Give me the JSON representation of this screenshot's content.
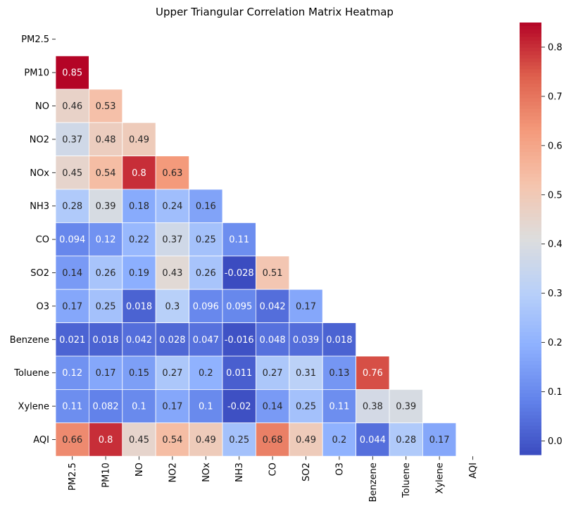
{
  "chart_data": {
    "type": "heatmap",
    "title": "Upper Triangular Correlation Matrix Heatmap",
    "xlabel": "",
    "ylabel": "",
    "rows": [
      "PM2.5",
      "PM10",
      "NO",
      "NO2",
      "NOx",
      "NH3",
      "CO",
      "SO2",
      "O3",
      "Benzene",
      "Toluene",
      "Xylene",
      "AQI"
    ],
    "columns": [
      "PM2.5",
      "PM10",
      "NO",
      "NO2",
      "NOx",
      "NH3",
      "CO",
      "SO2",
      "O3",
      "Benzene",
      "Toluene",
      "Xylene",
      "AQI"
    ],
    "values": [
      [],
      [
        "0.85"
      ],
      [
        "0.46",
        "0.53"
      ],
      [
        "0.37",
        "0.48",
        "0.49"
      ],
      [
        "0.45",
        "0.54",
        "0.8",
        "0.63"
      ],
      [
        "0.28",
        "0.39",
        "0.18",
        "0.24",
        "0.16"
      ],
      [
        "0.094",
        "0.12",
        "0.22",
        "0.37",
        "0.25",
        "0.11"
      ],
      [
        "0.14",
        "0.26",
        "0.19",
        "0.43",
        "0.26",
        "-0.028",
        "0.51"
      ],
      [
        "0.17",
        "0.25",
        "0.018",
        "0.3",
        "0.096",
        "0.095",
        "0.042",
        "0.17"
      ],
      [
        "0.021",
        "0.018",
        "0.042",
        "0.028",
        "0.047",
        "-0.016",
        "0.048",
        "0.039",
        "0.018"
      ],
      [
        "0.12",
        "0.17",
        "0.15",
        "0.27",
        "0.2",
        "0.011",
        "0.27",
        "0.31",
        "0.13",
        "0.76"
      ],
      [
        "0.11",
        "0.082",
        "0.1",
        "0.17",
        "0.1",
        "-0.02",
        "0.14",
        "0.25",
        "0.11",
        "0.38",
        "0.39"
      ],
      [
        "0.66",
        "0.8",
        "0.45",
        "0.54",
        "0.49",
        "0.25",
        "0.68",
        "0.49",
        "0.2",
        "0.044",
        "0.28",
        "0.17"
      ]
    ],
    "mask": "upper triangle including diagonal",
    "colormap": "coolwarm",
    "colorbar": {
      "min": -0.028,
      "max": 0.85,
      "ticks": [
        "0.0",
        "0.1",
        "0.2",
        "0.3",
        "0.4",
        "0.5",
        "0.6",
        "0.7",
        "0.8"
      ],
      "placement": "right"
    },
    "grid": false
  }
}
